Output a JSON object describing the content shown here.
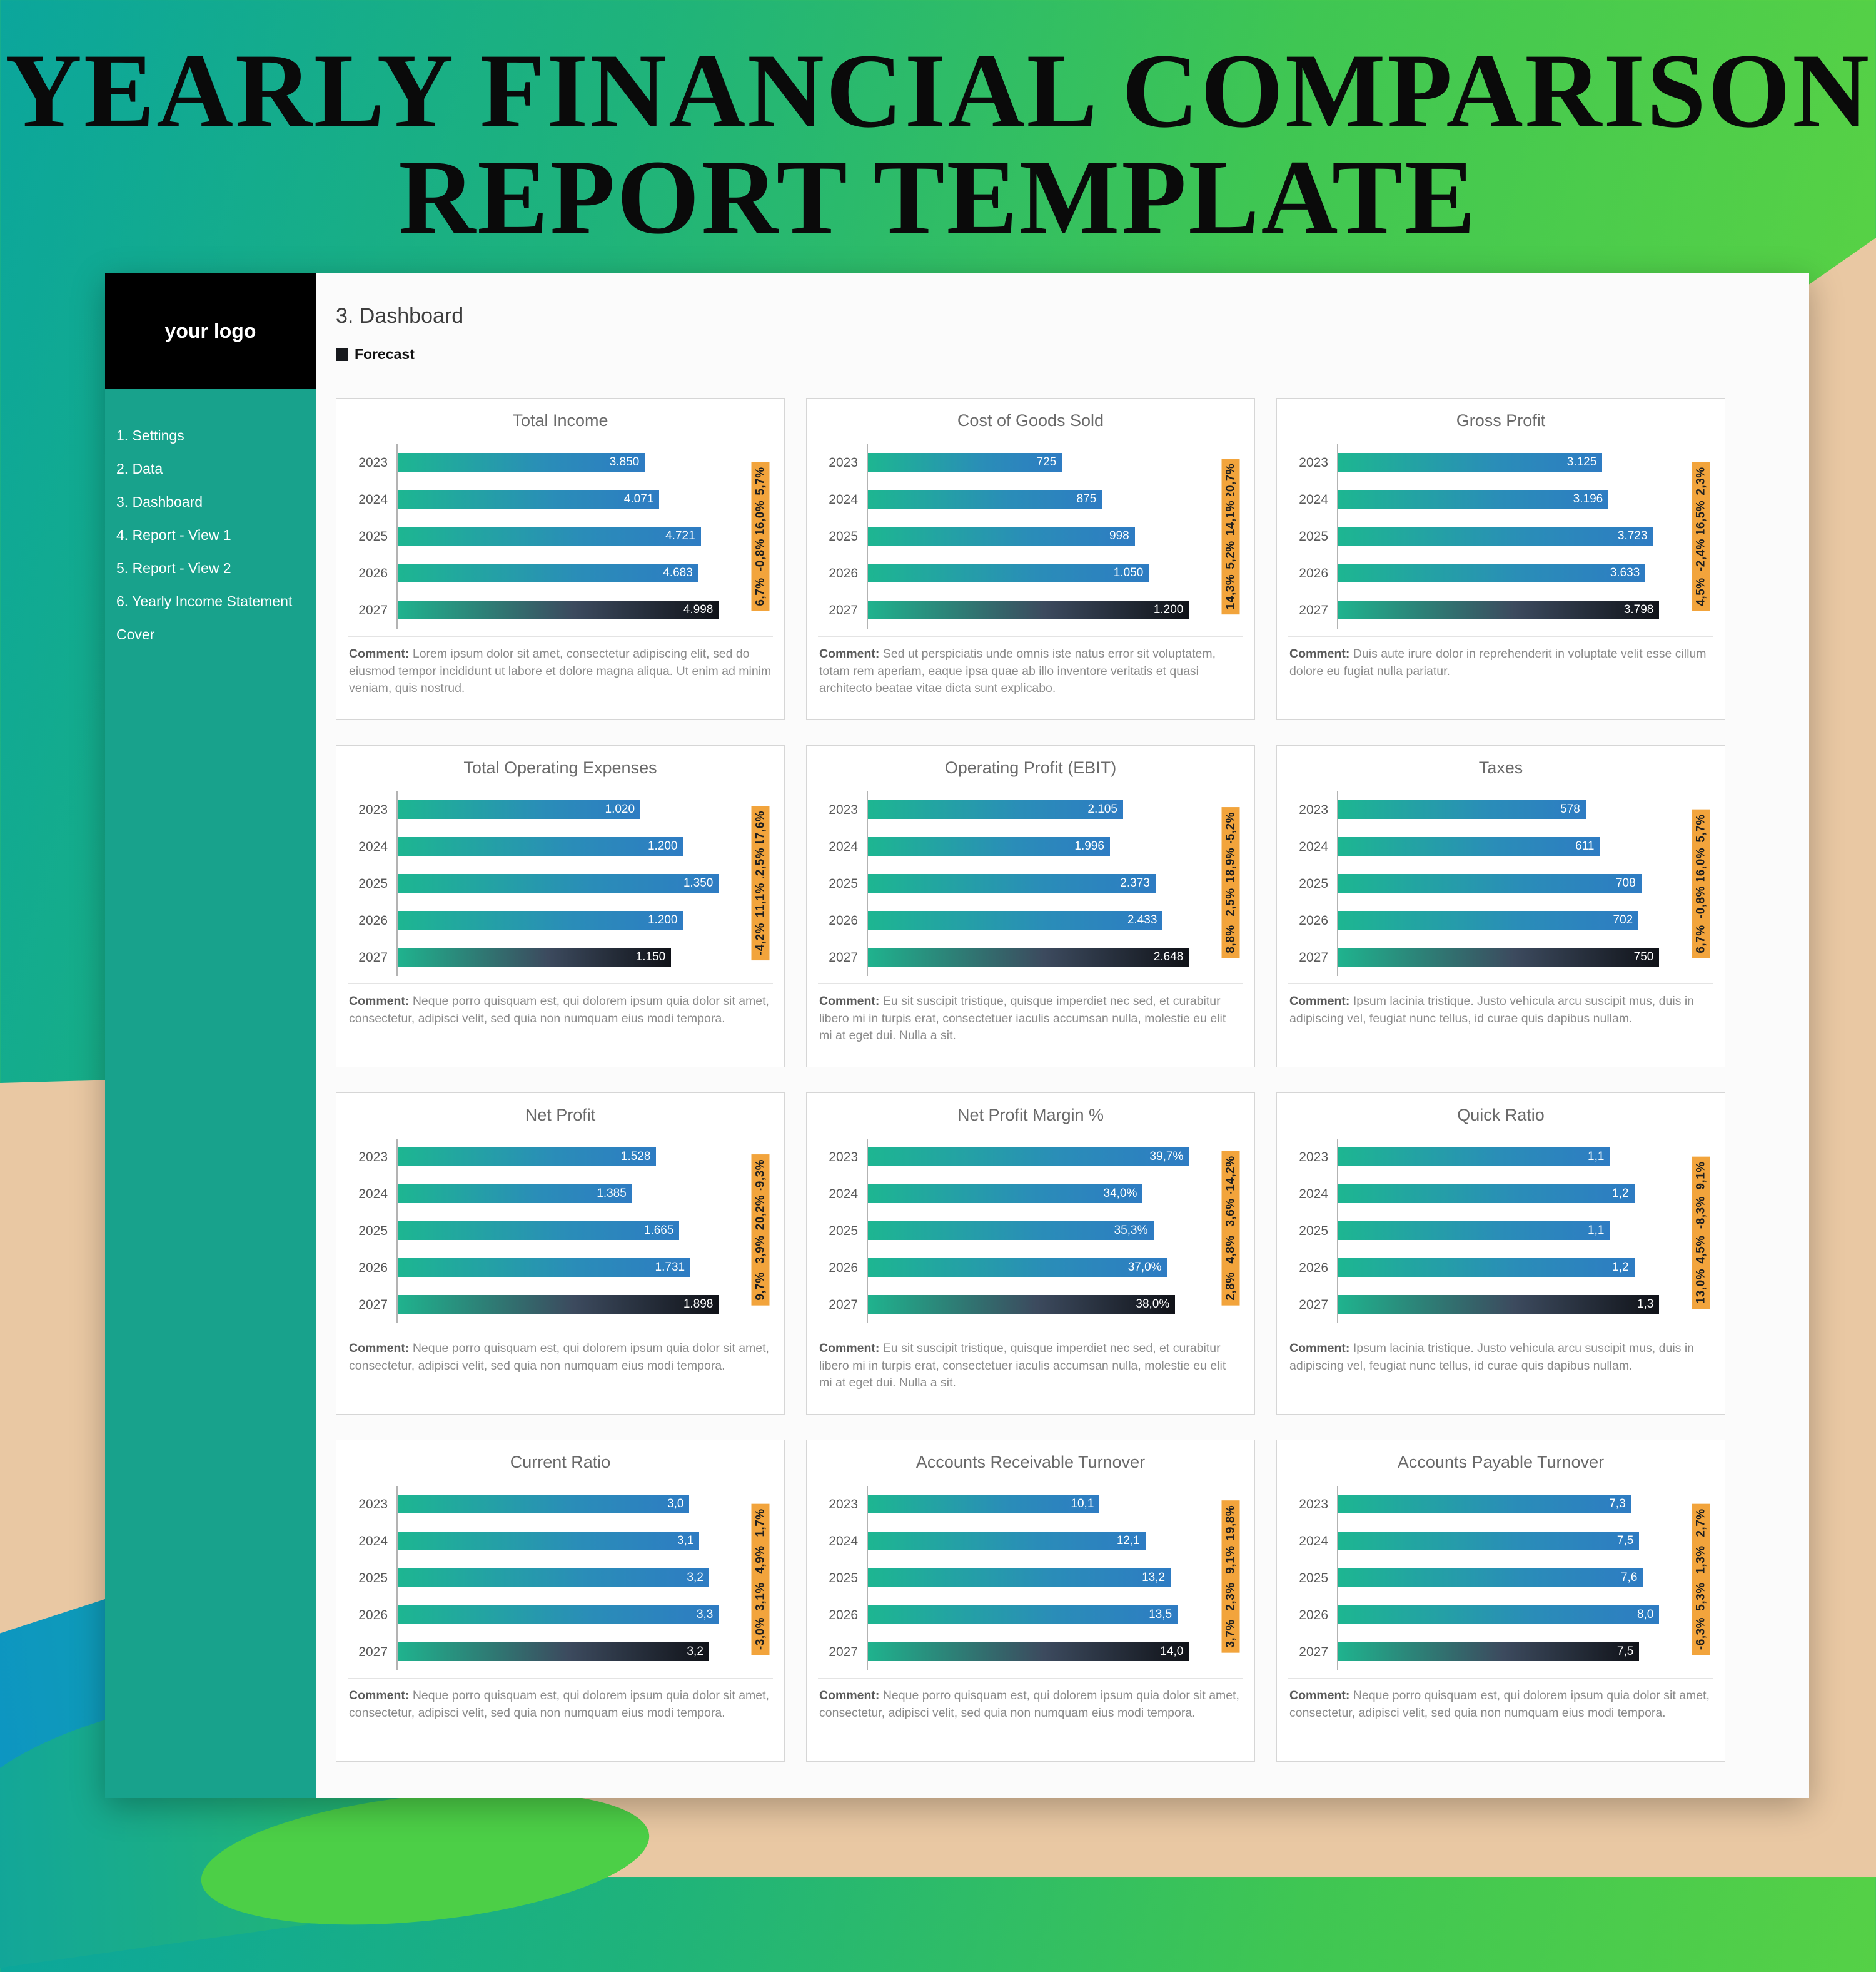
{
  "page": {
    "title_line1": "YEARLY FINANCIAL COMPARISON",
    "title_line2": "REPORT TEMPLATE"
  },
  "sidebar": {
    "logo": "your logo",
    "items": [
      "1. Settings",
      "2. Data",
      "3. Dashboard",
      "4. Report - View 1",
      "5. Report - View 2",
      "6. Yearly Income Statement",
      "Cover"
    ]
  },
  "main": {
    "heading": "3. Dashboard",
    "legend": "Forecast"
  },
  "comment_label": "Comment:",
  "colors": {
    "sidebar_teal": "#18a28c",
    "bar_gradient_start": "#1db691",
    "bar_gradient_end": "#2e7cc3",
    "forecast_dark": "#101218",
    "badge_orange": "#f2a43c",
    "tan": "#e9c8a3"
  },
  "chart_data": [
    {
      "type": "bar",
      "title": "Total Income",
      "categories": [
        "2023",
        "2024",
        "2025",
        "2026",
        "2027"
      ],
      "values": [
        3850,
        4071,
        4721,
        4683,
        4998
      ],
      "value_labels": [
        "3.850",
        "4.071",
        "4.721",
        "4.683",
        "4.998"
      ],
      "pct_changes": [
        "5,7%",
        "16,0%",
        "-0,8%",
        "6,7%"
      ],
      "forecast_index": 4,
      "comment": "Lorem ipsum dolor sit amet, consectetur adipiscing elit, sed do eiusmod tempor incididunt ut labore et dolore magna aliqua. Ut enim ad minim veniam, quis nostrud."
    },
    {
      "type": "bar",
      "title": "Cost of Goods Sold",
      "categories": [
        "2023",
        "2024",
        "2025",
        "2026",
        "2027"
      ],
      "values": [
        725,
        875,
        998,
        1050,
        1200
      ],
      "value_labels": [
        "725",
        "875",
        "998",
        "1.050",
        "1.200"
      ],
      "pct_changes": [
        "20,7%",
        "14,1%",
        "5,2%",
        "14,3%"
      ],
      "forecast_index": 4,
      "comment": "Sed ut perspiciatis unde omnis iste natus error sit voluptatem, totam rem aperiam, eaque ipsa quae ab illo inventore veritatis et quasi architecto beatae vitae dicta sunt explicabo."
    },
    {
      "type": "bar",
      "title": "Gross Profit",
      "categories": [
        "2023",
        "2024",
        "2025",
        "2026",
        "2027"
      ],
      "values": [
        3125,
        3196,
        3723,
        3633,
        3798
      ],
      "value_labels": [
        "3.125",
        "3.196",
        "3.723",
        "3.633",
        "3.798"
      ],
      "pct_changes": [
        "2,3%",
        "16,5%",
        "-2,4%",
        "4,5%"
      ],
      "forecast_index": 4,
      "comment": "Duis aute irure dolor in reprehenderit in voluptate velit esse cillum dolore eu fugiat nulla pariatur."
    },
    {
      "type": "bar",
      "title": "Total Operating Expenses",
      "categories": [
        "2023",
        "2024",
        "2025",
        "2026",
        "2027"
      ],
      "values": [
        1020,
        1200,
        1350,
        1200,
        1150
      ],
      "value_labels": [
        "1.020",
        "1.200",
        "1.350",
        "1.200",
        "1.150"
      ],
      "pct_changes": [
        "17,6%",
        "12,5%",
        "-11,1%",
        "-4,2%"
      ],
      "forecast_index": 4,
      "comment": "Neque porro quisquam est, qui dolorem ipsum quia dolor sit amet, consectetur, adipisci velit, sed quia non numquam eius modi tempora."
    },
    {
      "type": "bar",
      "title": "Operating Profit (EBIT)",
      "categories": [
        "2023",
        "2024",
        "2025",
        "2026",
        "2027"
      ],
      "values": [
        2105,
        1996,
        2373,
        2433,
        2648
      ],
      "value_labels": [
        "2.105",
        "1.996",
        "2.373",
        "2.433",
        "2.648"
      ],
      "pct_changes": [
        "-5,2%",
        "18,9%",
        "2,5%",
        "8,8%"
      ],
      "forecast_index": 4,
      "comment": "Eu sit suscipit tristique, quisque imperdiet nec sed, et curabitur libero mi in turpis erat, consectetuer iaculis accumsan nulla, molestie eu elit mi at eget dui. Nulla a sit."
    },
    {
      "type": "bar",
      "title": "Taxes",
      "categories": [
        "2023",
        "2024",
        "2025",
        "2026",
        "2027"
      ],
      "values": [
        578,
        611,
        708,
        702,
        750
      ],
      "value_labels": [
        "578",
        "611",
        "708",
        "702",
        "750"
      ],
      "pct_changes": [
        "5,7%",
        "16,0%",
        "-0,8%",
        "6,7%"
      ],
      "forecast_index": 4,
      "comment": "Ipsum lacinia tristique. Justo vehicula arcu suscipit mus, duis in adipiscing vel, feugiat nunc tellus, id curae quis dapibus nullam."
    },
    {
      "type": "bar",
      "title": "Net Profit",
      "categories": [
        "2023",
        "2024",
        "2025",
        "2026",
        "2027"
      ],
      "values": [
        1528,
        1385,
        1665,
        1731,
        1898
      ],
      "value_labels": [
        "1.528",
        "1.385",
        "1.665",
        "1.731",
        "1.898"
      ],
      "pct_changes": [
        "-9,3%",
        "20,2%",
        "3,9%",
        "9,7%"
      ],
      "forecast_index": 4,
      "comment": "Neque porro quisquam est, qui dolorem ipsum quia dolor sit amet, consectetur, adipisci velit, sed quia non numquam eius modi tempora."
    },
    {
      "type": "bar",
      "title": "Net Profit Margin %",
      "categories": [
        "2023",
        "2024",
        "2025",
        "2026",
        "2027"
      ],
      "values": [
        39.7,
        34.0,
        35.3,
        37.0,
        38.0
      ],
      "value_labels": [
        "39,7%",
        "34,0%",
        "35,3%",
        "37,0%",
        "38,0%"
      ],
      "pct_changes": [
        "-14,2%",
        "3,6%",
        "4,8%",
        "2,8%"
      ],
      "forecast_index": 4,
      "comment": "Eu sit suscipit tristique, quisque imperdiet nec sed, et curabitur libero mi in turpis erat, consectetuer iaculis accumsan nulla, molestie eu elit mi at eget dui. Nulla a sit."
    },
    {
      "type": "bar",
      "title": "Quick Ratio",
      "categories": [
        "2023",
        "2024",
        "2025",
        "2026",
        "2027"
      ],
      "values": [
        1.1,
        1.2,
        1.1,
        1.2,
        1.3
      ],
      "value_labels": [
        "1,1",
        "1,2",
        "1,1",
        "1,2",
        "1,3"
      ],
      "pct_changes": [
        "9,1%",
        "-8,3%",
        "4,5%",
        "13,0%"
      ],
      "forecast_index": 4,
      "comment": "Ipsum lacinia tristique. Justo vehicula arcu suscipit mus, duis in adipiscing vel, feugiat nunc tellus, id curae quis dapibus nullam."
    },
    {
      "type": "bar",
      "title": "Current Ratio",
      "categories": [
        "2023",
        "2024",
        "2025",
        "2026",
        "2027"
      ],
      "values": [
        3.0,
        3.1,
        3.2,
        3.3,
        3.2
      ],
      "value_labels": [
        "3,0",
        "3,1",
        "3,2",
        "3,3",
        "3,2"
      ],
      "pct_changes": [
        "1,7%",
        "4,9%",
        "3,1%",
        "-3,0%"
      ],
      "forecast_index": 4,
      "comment": "Neque porro quisquam est, qui dolorem ipsum quia dolor sit amet, consectetur, adipisci velit, sed quia non numquam eius modi tempora."
    },
    {
      "type": "bar",
      "title": "Accounts Receivable Turnover",
      "categories": [
        "2023",
        "2024",
        "2025",
        "2026",
        "2027"
      ],
      "values": [
        10.1,
        12.1,
        13.2,
        13.5,
        14.0
      ],
      "value_labels": [
        "10,1",
        "12,1",
        "13,2",
        "13,5",
        "14,0"
      ],
      "pct_changes": [
        "19,8%",
        "9,1%",
        "2,3%",
        "3,7%"
      ],
      "forecast_index": 4,
      "comment": "Neque porro quisquam est, qui dolorem ipsum quia dolor sit amet, consectetur, adipisci velit, sed quia non numquam eius modi tempora."
    },
    {
      "type": "bar",
      "title": "Accounts Payable Turnover",
      "categories": [
        "2023",
        "2024",
        "2025",
        "2026",
        "2027"
      ],
      "values": [
        7.3,
        7.5,
        7.6,
        8.0,
        7.5
      ],
      "value_labels": [
        "7,3",
        "7,5",
        "7,6",
        "8,0",
        "7,5"
      ],
      "pct_changes": [
        "2,7%",
        "1,3%",
        "5,3%",
        "-6,3%"
      ],
      "forecast_index": 4,
      "comment": "Neque porro quisquam est, qui dolorem ipsum quia dolor sit amet, consectetur, adipisci velit, sed quia non numquam eius modi tempora."
    }
  ]
}
